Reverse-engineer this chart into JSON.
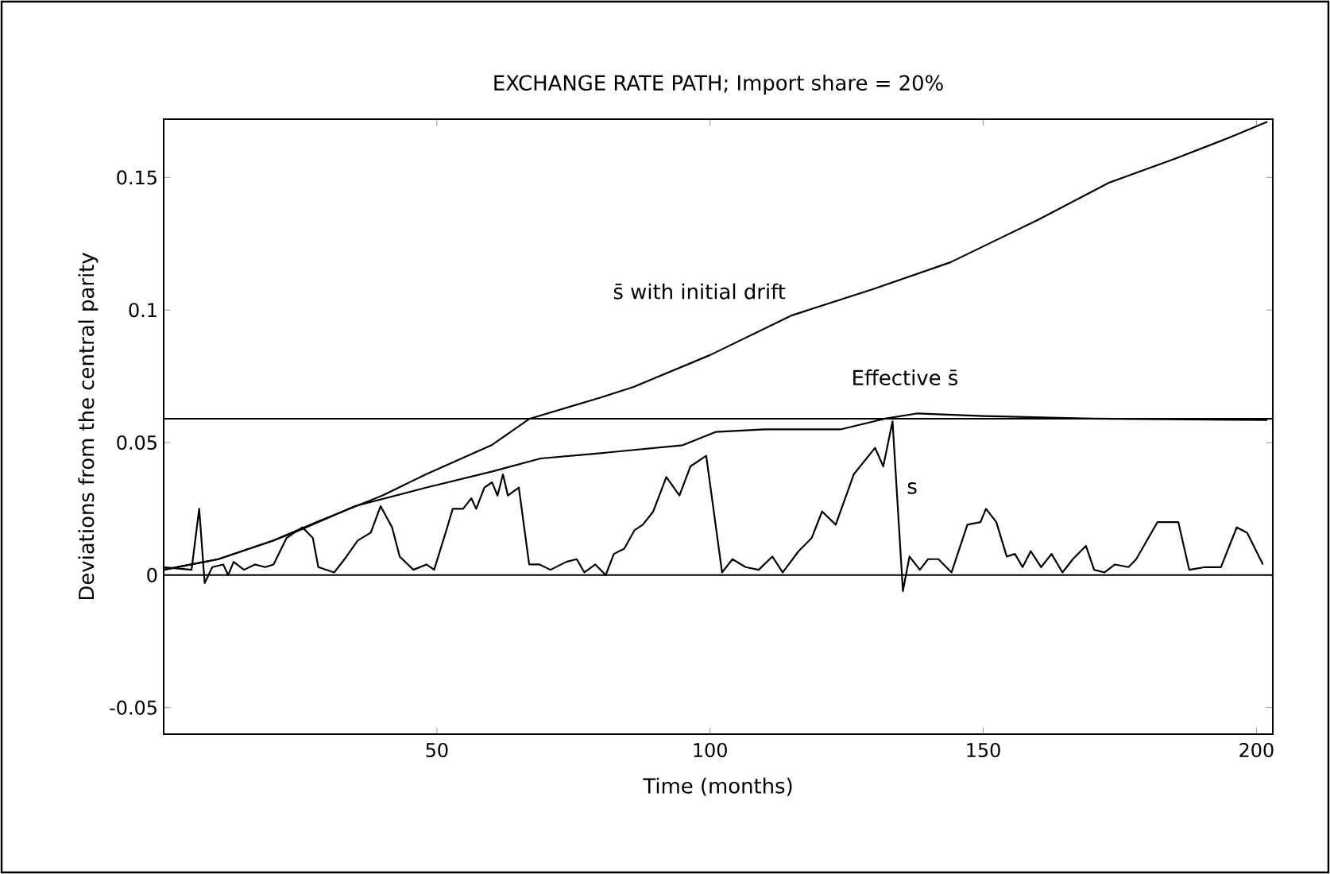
{
  "chart_data": {
    "type": "line",
    "title": "EXCHANGE RATE PATH; Import share = 20%",
    "xlabel": "Time (months)",
    "ylabel": "Deviations from the central parity",
    "xlim": [
      0,
      203
    ],
    "ylim": [
      -0.06,
      0.172
    ],
    "xticks": [
      50,
      100,
      150,
      200
    ],
    "yticks": [
      -0.05,
      0,
      0.05,
      0.1,
      0.15
    ],
    "series": [
      {
        "name": "s̄ with initial drift",
        "color": "#000000",
        "x": [
          0,
          10,
          20,
          28,
          40,
          48,
          60,
          67,
          80,
          86,
          100,
          115,
          130,
          144,
          160,
          173,
          185,
          195,
          202
        ],
        "values": [
          0.002,
          0.006,
          0.013,
          0.02,
          0.03,
          0.038,
          0.049,
          0.059,
          0.067,
          0.071,
          0.083,
          0.098,
          0.108,
          0.118,
          0.134,
          0.148,
          0.157,
          0.165,
          0.171
        ]
      },
      {
        "name": "Effective s̄",
        "color": "#000000",
        "x": [
          0,
          10,
          20,
          25,
          35,
          48,
          60,
          69,
          80,
          95,
          101,
          110,
          124,
          132,
          138,
          150,
          170,
          202
        ],
        "values": [
          0.002,
          0.006,
          0.013,
          0.017,
          0.026,
          0.033,
          0.039,
          0.044,
          0.046,
          0.049,
          0.054,
          0.055,
          0.055,
          0.059,
          0.061,
          0.06,
          0.059,
          0.0585
        ]
      },
      {
        "name": "s",
        "color": "#000000",
        "x": [
          0,
          5.1,
          6.5,
          7.5,
          8.9,
          10.9,
          11.8,
          12.8,
          14.7,
          16.7,
          18.6,
          20.1,
          22.5,
          23.9,
          25.4,
          27.3,
          28.3,
          31.2,
          33.1,
          35.5,
          37.9,
          39.7,
          41.8,
          43.2,
          45.7,
          48.1,
          49.5,
          51.9,
          52.9,
          54.8,
          56.3,
          57.2,
          58.7,
          60.1,
          61.1,
          62.1,
          63.0,
          65.0,
          66.9,
          68.8,
          70.8,
          73.7,
          75.6,
          77.0,
          79.0,
          80.9,
          82.4,
          84.3,
          86.2,
          87.7,
          89.6,
          92.0,
          94.4,
          96.4,
          99.3,
          102.2,
          104.1,
          106.5,
          108.9,
          111.4,
          113.3,
          116.2,
          118.6,
          120.5,
          123.0,
          126.3,
          130.2,
          131.7,
          133.4,
          135.3,
          136.5,
          138.4,
          139.9,
          141.8,
          144.2,
          147.1,
          149.5,
          150.5,
          152.4,
          154.3,
          155.8,
          157.2,
          158.7,
          160.6,
          162.5,
          164.5,
          166.4,
          168.8,
          170.3,
          172.2,
          174.1,
          176.6,
          178.0,
          181.9,
          183.3,
          185.7,
          187.7,
          190.6,
          193.5,
          196.4,
          198.3,
          201.2
        ],
        "values": [
          0.003,
          0.002,
          0.025,
          -0.003,
          0.003,
          0.004,
          0,
          0.005,
          0.002,
          0.004,
          0.003,
          0.004,
          0.014,
          0.016,
          0.018,
          0.014,
          0.003,
          0.001,
          0.006,
          0.013,
          0.016,
          0.026,
          0.018,
          0.007,
          0.002,
          0.004,
          0.002,
          0.018,
          0.025,
          0.025,
          0.029,
          0.025,
          0.033,
          0.035,
          0.03,
          0.038,
          0.03,
          0.033,
          0.004,
          0.004,
          0.002,
          0.005,
          0.006,
          0.001,
          0.004,
          0,
          0.008,
          0.01,
          0.017,
          0.019,
          0.024,
          0.037,
          0.03,
          0.041,
          0.045,
          0.001,
          0.006,
          0.003,
          0.002,
          0.007,
          0.001,
          0.009,
          0.014,
          0.024,
          0.019,
          0.038,
          0.048,
          0.041,
          0.058,
          -0.006,
          0.007,
          0.002,
          0.006,
          0.006,
          0.001,
          0.019,
          0.02,
          0.025,
          0.02,
          0.007,
          0.008,
          0.003,
          0.009,
          0.003,
          0.008,
          0.001,
          0.006,
          0.011,
          0.002,
          0.001,
          0.004,
          0.003,
          0.006,
          0.02,
          0.02,
          0.02,
          0.002,
          0.003,
          0.003,
          0.018,
          0.016,
          0.004
        ]
      }
    ],
    "ref_lines": [
      {
        "axis": "y",
        "value": 0
      },
      {
        "axis": "y",
        "value": 0.059
      }
    ]
  }
}
